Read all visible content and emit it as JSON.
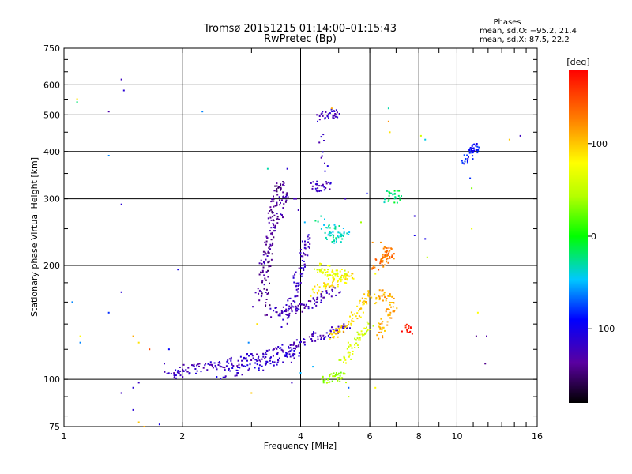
{
  "chart_data": {
    "type": "scatter",
    "title": "Tromsø 20151215 01:14:00–01:15:43",
    "subtitle": "RwPretec (Bp)",
    "xlabel": "Frequency [MHz]",
    "ylabel": "Stationary phase Virtual Height [km]",
    "x_scale": "log",
    "y_scale": "log",
    "xlim": [
      1,
      16
    ],
    "ylim": [
      75,
      750
    ],
    "x_ticks": [
      1,
      2,
      4,
      6,
      8,
      10,
      16
    ],
    "x_tick_labels": [
      "1",
      "2",
      "4",
      "6",
      "8",
      "10",
      "16"
    ],
    "y_ticks": [
      75,
      100,
      200,
      300,
      400,
      500,
      600,
      750
    ],
    "y_tick_labels": [
      "75",
      "100",
      "200",
      "300",
      "400",
      "500",
      "600",
      "750"
    ],
    "grid": true,
    "stats": {
      "heading": "Phases",
      "line_o": "mean, sd,O: −95.2, 21.4",
      "line_x": "mean, sd,X:  87.5, 22.2"
    },
    "colorbar": {
      "label": "[deg]",
      "range": [
        -180,
        180
      ],
      "ticks": [
        100,
        0,
        -100
      ],
      "tick_labels": [
        "100",
        "0",
        "−100"
      ]
    },
    "traces": [
      {
        "phase": -120,
        "points": [
          [
            1.85,
            102
          ],
          [
            1.95,
            104
          ],
          [
            2.05,
            106
          ],
          [
            2.2,
            107
          ],
          [
            2.4,
            108
          ],
          [
            2.6,
            110
          ],
          [
            2.8,
            112
          ],
          [
            3.0,
            114
          ],
          [
            3.2,
            116
          ],
          [
            3.4,
            118
          ]
        ]
      },
      {
        "phase": -110,
        "points": [
          [
            2.5,
            103
          ],
          [
            2.8,
            105
          ],
          [
            3.1,
            108
          ],
          [
            3.4,
            111
          ],
          [
            3.7,
            114
          ],
          [
            3.9,
            117
          ]
        ]
      },
      {
        "phase": -140,
        "points": [
          [
            3.3,
            150
          ],
          [
            3.25,
            180
          ],
          [
            3.3,
            210
          ],
          [
            3.35,
            240
          ],
          [
            3.4,
            270
          ],
          [
            3.45,
            300
          ],
          [
            3.5,
            320
          ],
          [
            3.6,
            330
          ]
        ]
      },
      {
        "phase": -130,
        "points": [
          [
            3.1,
            160
          ],
          [
            3.2,
            190
          ],
          [
            3.3,
            230
          ],
          [
            3.45,
            260
          ],
          [
            3.6,
            290
          ],
          [
            3.7,
            315
          ]
        ]
      },
      {
        "phase": -125,
        "points": [
          [
            3.4,
            150
          ],
          [
            3.6,
            151
          ],
          [
            3.8,
            152
          ],
          [
            4.0,
            155
          ],
          [
            4.3,
            160
          ],
          [
            4.6,
            167
          ],
          [
            5.0,
            175
          ]
        ]
      },
      {
        "phase": -120,
        "points": [
          [
            3.5,
            118
          ],
          [
            3.7,
            120
          ],
          [
            3.9,
            124
          ],
          [
            4.2,
            128
          ],
          [
            4.5,
            131
          ],
          [
            4.9,
            134
          ],
          [
            5.3,
            137
          ]
        ]
      },
      {
        "phase": -120,
        "points": [
          [
            3.6,
            140
          ],
          [
            3.8,
            160
          ],
          [
            3.9,
            180
          ],
          [
            4.0,
            200
          ],
          [
            4.1,
            220
          ],
          [
            4.2,
            240
          ]
        ]
      },
      {
        "phase": 90,
        "points": [
          [
            4.3,
            170
          ],
          [
            4.6,
            175
          ],
          [
            4.9,
            180
          ],
          [
            5.2,
            185
          ],
          [
            5.4,
            190
          ]
        ]
      },
      {
        "phase": 70,
        "points": [
          [
            4.4,
            200
          ],
          [
            4.6,
            195
          ],
          [
            4.8,
            190
          ],
          [
            5.0,
            188
          ],
          [
            5.2,
            192
          ]
        ]
      },
      {
        "phase": 95,
        "points": [
          [
            4.8,
            130
          ],
          [
            5.0,
            135
          ],
          [
            5.3,
            140
          ],
          [
            5.6,
            150
          ],
          [
            5.8,
            160
          ],
          [
            6.0,
            170
          ]
        ]
      },
      {
        "phase": 60,
        "points": [
          [
            5.1,
            110
          ],
          [
            5.3,
            118
          ],
          [
            5.5,
            125
          ],
          [
            5.8,
            132
          ],
          [
            6.0,
            140
          ]
        ]
      },
      {
        "phase": 40,
        "points": [
          [
            4.6,
            100
          ],
          [
            4.8,
            101
          ],
          [
            5.0,
            102
          ],
          [
            5.2,
            101
          ]
        ]
      },
      {
        "phase": -35,
        "points": [
          [
            4.6,
            250
          ],
          [
            4.8,
            240
          ],
          [
            5.0,
            235
          ],
          [
            5.2,
            245
          ],
          [
            4.4,
            270
          ]
        ]
      },
      {
        "phase": -120,
        "points": [
          [
            4.3,
            325
          ],
          [
            4.5,
            323
          ],
          [
            4.7,
            325
          ],
          [
            4.5,
            500
          ],
          [
            4.8,
            505
          ],
          [
            5.0,
            500
          ]
        ]
      },
      {
        "phase": 110,
        "points": [
          [
            6.3,
            130
          ],
          [
            6.5,
            140
          ],
          [
            6.7,
            150
          ],
          [
            6.9,
            160
          ],
          [
            6.5,
            170
          ],
          [
            6.2,
            160
          ]
        ]
      },
      {
        "phase": 130,
        "points": [
          [
            6.2,
            200
          ],
          [
            6.4,
            205
          ],
          [
            6.6,
            210
          ],
          [
            6.8,
            215
          ],
          [
            6.5,
            220
          ]
        ]
      },
      {
        "phase": -20,
        "points": [
          [
            6.6,
            300
          ],
          [
            6.9,
            310
          ],
          [
            7.1,
            300
          ]
        ]
      },
      {
        "phase": 170,
        "points": [
          [
            7.4,
            135
          ],
          [
            7.6,
            136
          ]
        ]
      },
      {
        "phase": -90,
        "points": [
          [
            10.5,
            380
          ],
          [
            10.8,
            395
          ],
          [
            11.2,
            410
          ],
          [
            11.0,
            400
          ]
        ]
      }
    ],
    "scatter": [
      [
        1.08,
        550,
        90
      ],
      [
        1.08,
        540,
        -20
      ],
      [
        1.3,
        510,
        -130
      ],
      [
        1.4,
        620,
        -120
      ],
      [
        1.42,
        580,
        -110
      ],
      [
        1.3,
        390,
        -60
      ],
      [
        1.4,
        290,
        -110
      ],
      [
        1.05,
        160,
        -60
      ],
      [
        1.3,
        150,
        -80
      ],
      [
        1.4,
        170,
        -110
      ],
      [
        1.5,
        130,
        110
      ],
      [
        1.55,
        125,
        90
      ],
      [
        1.65,
        120,
        150
      ],
      [
        1.1,
        130,
        80
      ],
      [
        1.1,
        125,
        -60
      ],
      [
        1.5,
        95,
        -110
      ],
      [
        1.55,
        98,
        -120
      ],
      [
        1.4,
        92,
        -120
      ],
      [
        1.5,
        83,
        -110
      ],
      [
        1.55,
        77,
        100
      ],
      [
        1.6,
        75,
        110
      ],
      [
        1.75,
        76,
        -100
      ],
      [
        1.8,
        110,
        -120
      ],
      [
        1.85,
        120,
        -90
      ],
      [
        1.95,
        195,
        -100
      ],
      [
        2.25,
        510,
        -60
      ],
      [
        3.1,
        140,
        90
      ],
      [
        4.4,
        500,
        -130
      ],
      [
        4.8,
        520,
        110
      ],
      [
        6.7,
        520,
        -30
      ],
      [
        6.7,
        480,
        120
      ],
      [
        6.75,
        450,
        90
      ],
      [
        8.1,
        440,
        60
      ],
      [
        8.3,
        430,
        -40
      ],
      [
        7.8,
        270,
        -110
      ],
      [
        7.8,
        240,
        -100
      ],
      [
        8.3,
        235,
        -100
      ],
      [
        8.4,
        210,
        50
      ],
      [
        10.9,
        250,
        70
      ],
      [
        11.3,
        150,
        80
      ],
      [
        11.2,
        130,
        -140
      ],
      [
        11.9,
        130,
        -130
      ],
      [
        11.8,
        110,
        -140
      ],
      [
        13.6,
        430,
        100
      ],
      [
        14.5,
        440,
        -120
      ],
      [
        10.8,
        340,
        -80
      ],
      [
        10.9,
        320,
        30
      ],
      [
        5.3,
        90,
        50
      ],
      [
        5.3,
        95,
        -70
      ],
      [
        6.2,
        95,
        80
      ],
      [
        3.8,
        98,
        -120
      ],
      [
        4.0,
        104,
        -50
      ],
      [
        4.3,
        108,
        -50
      ],
      [
        3.95,
        280,
        -120
      ],
      [
        3.85,
        300,
        -120
      ],
      [
        4.1,
        260,
        -50
      ],
      [
        5.2,
        300,
        -120
      ],
      [
        5.9,
        310,
        -90
      ],
      [
        6.1,
        230,
        120
      ],
      [
        6.4,
        230,
        120
      ],
      [
        6.2,
        190,
        80
      ],
      [
        5.7,
        260,
        40
      ],
      [
        3.7,
        360,
        -110
      ],
      [
        3.9,
        300,
        -130
      ],
      [
        3.3,
        360,
        -30
      ],
      [
        2.95,
        125,
        -60
      ],
      [
        3.0,
        92,
        100
      ]
    ]
  }
}
